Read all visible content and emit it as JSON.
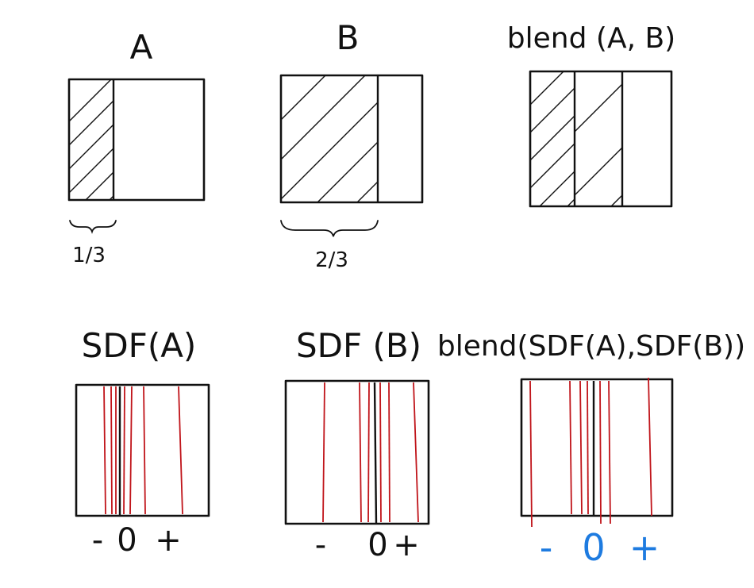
{
  "panels": {
    "a": {
      "title": "A",
      "brace_label": "1/3"
    },
    "b": {
      "title": "B",
      "brace_label": "2/3"
    },
    "blend": {
      "title": "blend (A, B)"
    },
    "sdf_a": {
      "title": "SDF(A)",
      "signs": [
        "-",
        "0",
        "+"
      ]
    },
    "sdf_b": {
      "title": "SDF (B)",
      "signs": [
        "-",
        "0",
        "+"
      ]
    },
    "sdf_blend": {
      "title": "blend(SDF(A),SDF(B))",
      "signs": [
        "-",
        "0",
        "+"
      ]
    }
  },
  "colors": {
    "ink": "#111111",
    "contour": "#c0141a",
    "highlight_signs": "#1e7be0"
  }
}
